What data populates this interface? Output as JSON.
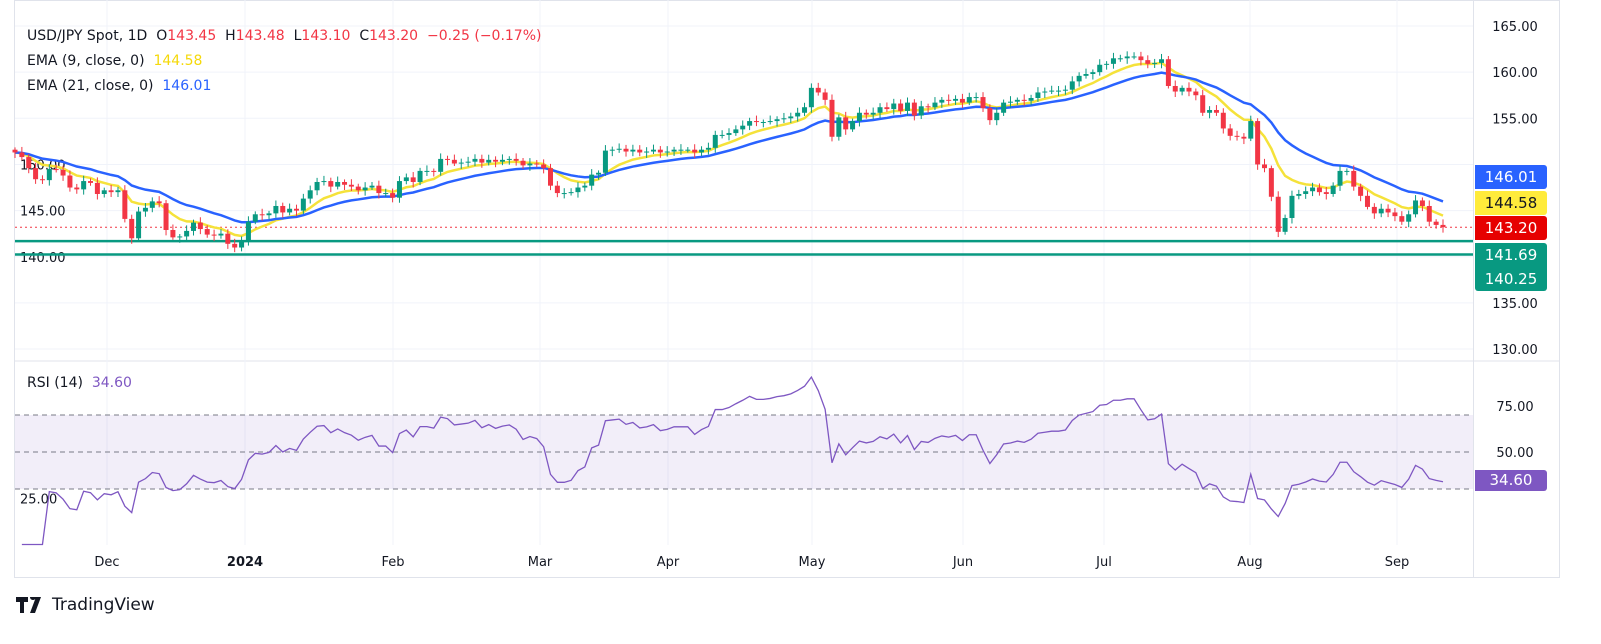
{
  "legend": {
    "symbol": "USD/JPY Spot, 1D",
    "open_label": "O",
    "open": "143.45",
    "high_label": "H",
    "high": "143.48",
    "low_label": "L",
    "low": "143.10",
    "close_label": "C",
    "close": "143.20",
    "change": "−0.25 (−0.17%)",
    "ema9_label": "EMA (9, close, 0)",
    "ema9_value": "144.58",
    "ema21_label": "EMA (21, close, 0)",
    "ema21_value": "146.01",
    "rsi_label": "RSI (14)",
    "rsi_value": "34.60"
  },
  "price_tags": [
    {
      "label": "146.01",
      "color": "#2962ff",
      "text_color": "#ffffff"
    },
    {
      "label": "144.58",
      "color": "#ffeb3b",
      "text_color": "#131722"
    },
    {
      "label": "143.20",
      "color": "#e60000",
      "text_color": "#ffffff"
    },
    {
      "label": "141.69",
      "color": "#089981",
      "text_color": "#ffffff"
    },
    {
      "label": "140.25",
      "color": "#089981",
      "text_color": "#ffffff"
    }
  ],
  "rsi_tag": {
    "label": "34.60",
    "color": "#7e57c2"
  },
  "brand": "TradingView",
  "chart_data": {
    "type": "candlestick",
    "interval": "1D",
    "price_axis": {
      "range": [
        127,
        167
      ],
      "ticks": [
        "165.00",
        "160.00",
        "155.00",
        "150.00",
        "145.00",
        "140.00",
        "135.00",
        "130.00"
      ]
    },
    "rsi_axis": {
      "range": [
        5,
        95
      ],
      "ticks": [
        "75.00",
        "50.00",
        "25.00"
      ],
      "band": [
        30,
        70
      ],
      "midline": 50
    },
    "time_axis": [
      "Dec",
      "2024",
      "Feb",
      "Mar",
      "Apr",
      "May",
      "Jun",
      "Jul",
      "Aug",
      "Sep"
    ],
    "horizontal_levels": [
      141.69,
      140.25
    ],
    "colors": {
      "up": "#089981",
      "down": "#f23645",
      "ema9": "#f5e23a",
      "ema21": "#2962ff",
      "rsi": "#7e57c2",
      "levels": "#089981"
    },
    "ema_periods": [
      9,
      21
    ],
    "rsi_period": 14,
    "closes": [
      151.3,
      150.8,
      149.6,
      148.4,
      148.3,
      149.5,
      149.4,
      148.8,
      147.5,
      147.3,
      148.2,
      148.0,
      146.8,
      147.2,
      147.0,
      147.2,
      144.1,
      142.0,
      144.9,
      145.3,
      146.0,
      145.8,
      142.9,
      142.1,
      142.2,
      142.8,
      143.7,
      143.0,
      142.4,
      142.3,
      142.5,
      141.4,
      141.0,
      141.8,
      143.8,
      144.6,
      144.5,
      144.7,
      145.5,
      144.8,
      145.2,
      145.0,
      146.3,
      147.2,
      148.1,
      148.2,
      147.6,
      148.1,
      147.8,
      147.6,
      147.2,
      147.5,
      147.7,
      146.9,
      146.9,
      146.4,
      148.2,
      148.6,
      148.1,
      149.3,
      149.3,
      149.2,
      150.6,
      150.5,
      150.1,
      150.2,
      150.3,
      150.6,
      150.2,
      150.5,
      150.3,
      150.5,
      150.6,
      150.4,
      149.9,
      150.1,
      150.0,
      149.6,
      147.7,
      146.9,
      146.9,
      147.0,
      147.5,
      147.7,
      148.9,
      149.1,
      151.5,
      151.6,
      151.7,
      151.4,
      151.6,
      151.3,
      151.4,
      151.6,
      151.3,
      151.4,
      151.6,
      151.6,
      151.6,
      151.3,
      151.6,
      151.8,
      153.2,
      153.2,
      153.4,
      153.8,
      154.2,
      154.7,
      154.6,
      154.6,
      154.7,
      154.9,
      155.0,
      155.2,
      155.6,
      156.2,
      158.3,
      157.8,
      157.0,
      153.0,
      155.1,
      153.8,
      154.7,
      155.6,
      155.4,
      155.6,
      156.2,
      156.0,
      156.6,
      155.8,
      156.7,
      155.3,
      156.3,
      156.2,
      156.7,
      157.0,
      156.9,
      157.1,
      156.7,
      157.3,
      157.3,
      156.1,
      154.8,
      155.6,
      156.7,
      156.8,
      157.0,
      156.9,
      157.2,
      157.8,
      157.9,
      158.0,
      158.0,
      158.1,
      159.0,
      159.6,
      159.8,
      160.0,
      160.8,
      160.9,
      161.5,
      161.5,
      161.7,
      161.7,
      161.3,
      160.9,
      161.0,
      161.4,
      158.5,
      157.9,
      158.3,
      157.9,
      157.5,
      155.6,
      155.9,
      155.6,
      153.9,
      153.1,
      153.0,
      152.8,
      154.7,
      150.0,
      149.6,
      146.5,
      142.7,
      144.2,
      146.6,
      146.8,
      147.1,
      147.5,
      147.0,
      146.8,
      147.7,
      149.3,
      149.3,
      147.6,
      146.6,
      145.4,
      144.7,
      145.2,
      144.8,
      144.4,
      143.8,
      144.6,
      146.1,
      145.5,
      143.8,
      143.45,
      143.2
    ]
  }
}
